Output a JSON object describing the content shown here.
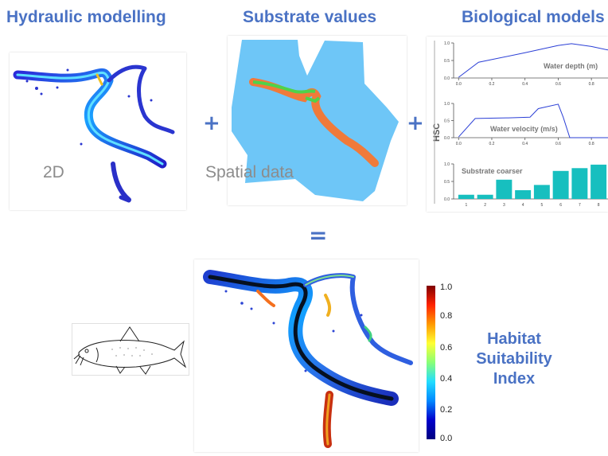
{
  "headings": {
    "hydraulic": "Hydraulic modelling",
    "substrate": "Substrate values",
    "biological": "Biological models"
  },
  "operators": {
    "plus": "+",
    "equals": "="
  },
  "captions": {
    "hydraulic": "2D",
    "substrate": "Spatial data"
  },
  "result_label": [
    "Habitat",
    "Suitability",
    "Index"
  ],
  "colors": {
    "heading": "#4a72c4",
    "water_blue": "#6ec6f7",
    "substrate_orange": "#f07a3a",
    "substrate_green": "#4fd24a",
    "bar_teal": "#17bfbf",
    "line_blue": "#2b3fd6"
  },
  "colorbar": {
    "ticks": [
      "1.0",
      "0.8",
      "0.6",
      "0.4",
      "0.2",
      "0.0"
    ]
  },
  "icons": [
    "fish-illustration",
    "river-network-map"
  ],
  "chart_data": [
    {
      "type": "line",
      "ylabel": "HSC",
      "annotation": "Water depth (m)",
      "x": [
        0.0,
        0.12,
        0.4,
        0.6,
        0.68,
        0.8,
        0.9
      ],
      "y": [
        0.02,
        0.45,
        0.72,
        0.93,
        0.98,
        0.9,
        0.8
      ],
      "xticks": [
        "0.0",
        "0.2",
        "0.4",
        "0.6",
        "0.8"
      ],
      "yticks": [
        "0.0",
        "0.5",
        "1.0"
      ],
      "xlim": [
        -0.03,
        0.9
      ],
      "ylim": [
        0,
        1.0
      ]
    },
    {
      "type": "line",
      "ylabel": "HSC",
      "annotation": "Water velocity (m/s)",
      "x": [
        0.0,
        0.1,
        0.3,
        0.43,
        0.48,
        0.6,
        0.63,
        0.67,
        0.9
      ],
      "y": [
        0.02,
        0.56,
        0.58,
        0.6,
        0.85,
        0.98,
        0.6,
        0.0,
        0.0
      ],
      "xticks": [
        "0.0",
        "0.2",
        "0.4",
        "0.6",
        "0.8"
      ],
      "yticks": [
        "0.0",
        "0.5",
        "1.0"
      ],
      "xlim": [
        -0.03,
        0.9
      ],
      "ylim": [
        0,
        1.0
      ]
    },
    {
      "type": "bar",
      "annotation": "Substrate coarser",
      "categories": [
        "1",
        "2",
        "3",
        "4",
        "5",
        "6",
        "7",
        "8"
      ],
      "values": [
        0.12,
        0.12,
        0.55,
        0.25,
        0.4,
        0.8,
        0.88,
        0.98
      ],
      "yticks": [
        "0.0",
        "0.5",
        "1.0"
      ],
      "ylim": [
        0,
        1.0
      ]
    }
  ]
}
